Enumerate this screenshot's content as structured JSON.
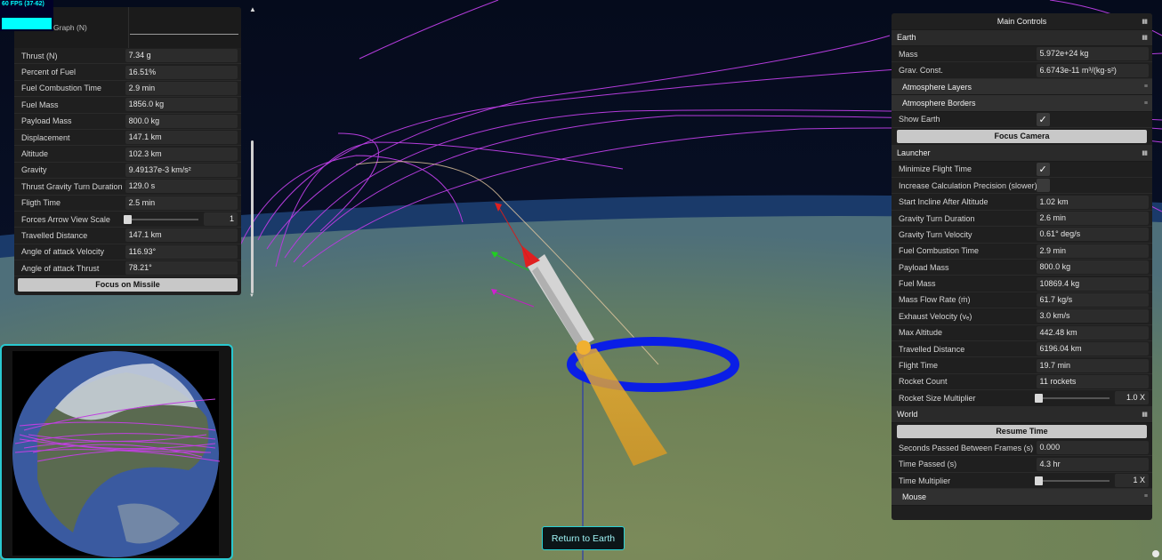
{
  "fps": {
    "label": "60 FPS (37-62)"
  },
  "missile_panel": {
    "graph_label": "Graph (N)",
    "rows": [
      {
        "label": "Thrust (N)",
        "value": "7.34 g"
      },
      {
        "label": "Percent of Fuel",
        "value": "16.51%"
      },
      {
        "label": "Fuel Combustion Time",
        "value": "2.9 min"
      },
      {
        "label": "Fuel Mass",
        "value": "1856.0 kg"
      },
      {
        "label": "Payload Mass",
        "value": "800.0 kg"
      },
      {
        "label": "Displacement",
        "value": "147.1 km"
      },
      {
        "label": "Altitude",
        "value": "102.3 km"
      },
      {
        "label": "Gravity",
        "value": "9.49137e-3 km/s²"
      },
      {
        "label": "Thrust Gravity Turn Duration",
        "value": "129.0 s"
      },
      {
        "label": "Fligth Time",
        "value": "2.5 min"
      }
    ],
    "forces_scale": {
      "label": "Forces Arrow View Scale",
      "value": "1",
      "level": 0
    },
    "rows2": [
      {
        "label": "Travelled Distance",
        "value": "147.1 km"
      },
      {
        "label": "Angle of attack Velocity",
        "value": "116.93°"
      },
      {
        "label": "Angle of attack Thrust",
        "value": "78.21°"
      }
    ],
    "focus_button": "Focus on Missile"
  },
  "main_controls": {
    "title": "Main Controls",
    "earth": {
      "title": "Earth",
      "mass": {
        "label": "Mass",
        "value": "5.972e+24 kg"
      },
      "grav": {
        "label": "Grav. Const.",
        "value": "6.6743e-11 m³/(kg·s²)"
      },
      "atmosphere_layers": "Atmosphere Layers",
      "atmosphere_borders": "Atmosphere Borders",
      "show_earth": {
        "label": "Show Earth",
        "checked": true
      },
      "focus_camera": "Focus Camera"
    },
    "launcher": {
      "title": "Launcher",
      "minimize_flight": {
        "label": "Minimize Flight Time",
        "checked": true
      },
      "precision": {
        "label": "Increase Calculation Precision (slower)",
        "checked": false
      },
      "rows": [
        {
          "label": "Start Incline After Altitude",
          "value": "1.02 km"
        },
        {
          "label": "Gravity Turn Duration",
          "value": "2.6 min"
        },
        {
          "label": "Gravity Turn Velocity",
          "value": "0.61° deg/s"
        },
        {
          "label": "Fuel Combustion Time",
          "value": "2.9 min"
        },
        {
          "label": "Payload Mass",
          "value": "800.0 kg"
        },
        {
          "label": "Fuel Mass",
          "value": "10869.4 kg"
        },
        {
          "label": "Mass Flow Rate (ṁ)",
          "value": "61.7 kg/s"
        },
        {
          "label": "Exhaust Velocity (vₑ)",
          "value": "3.0 km/s"
        },
        {
          "label": "Max Altitude",
          "value": "442.48 km"
        },
        {
          "label": "Travelled Distance",
          "value": "6196.04 km"
        },
        {
          "label": "Flight Time",
          "value": "19.7 min"
        },
        {
          "label": "Rocket Count",
          "value": "11 rockets"
        }
      ],
      "size_multiplier": {
        "label": "Rocket Size Multiplier",
        "value": "1.0 X",
        "level": 0
      }
    },
    "world": {
      "title": "World",
      "resume": "Resume Time",
      "seconds": {
        "label": "Seconds Passed Between Frames (s)",
        "value": "0.000"
      },
      "time_passed": {
        "label": "Time Passed (s)",
        "value": "4.3 hr"
      },
      "time_multiplier": {
        "label": "Time Multiplier",
        "value": "1 X",
        "level": 0
      }
    },
    "mouse": {
      "title": "Mouse"
    }
  },
  "return_button": "Return to Earth",
  "colors": {
    "accent": "#29c8cf",
    "orbit_ring": "#0a1ee6",
    "trajectories": "#b43cdc",
    "exhaust": "#e6a02a"
  }
}
